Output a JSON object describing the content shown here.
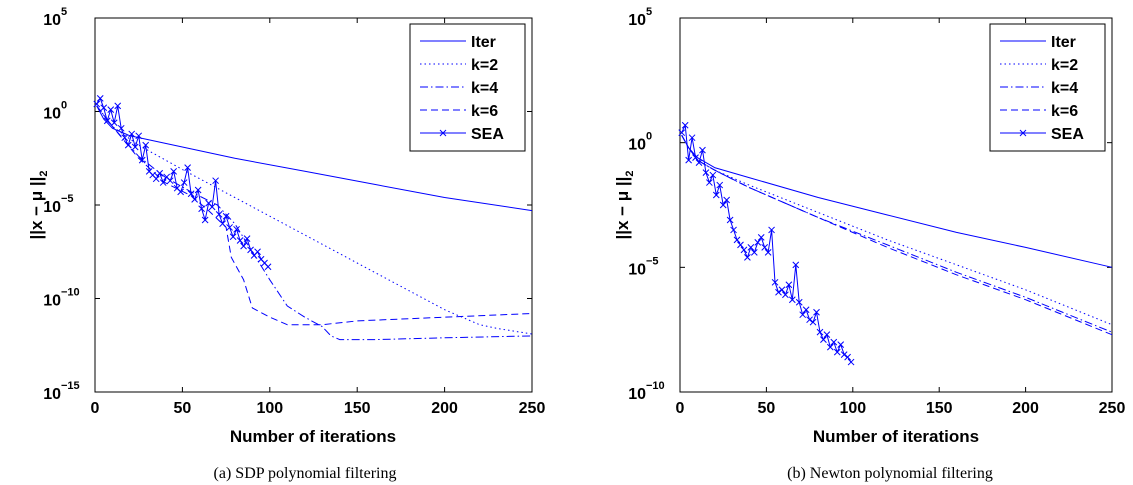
{
  "chart_data": [
    {
      "type": "line",
      "caption": "(a) SDP polynomial filtering",
      "xlabel": "Number of iterations",
      "ylabel": "||x − μ ||",
      "ylabel_sub": "2",
      "xlim": [
        0,
        250
      ],
      "ylim_log10": [
        -15,
        5
      ],
      "yscale": "log",
      "xticks": [
        0,
        50,
        100,
        150,
        200,
        250
      ],
      "yticks": [
        {
          "base": "10",
          "exp": "5",
          "value": 5
        },
        {
          "base": "10",
          "exp": "0",
          "value": 0
        },
        {
          "base": "10",
          "exp": "−5",
          "value": -5
        },
        {
          "base": "10",
          "exp": "−10",
          "value": -10
        },
        {
          "base": "10",
          "exp": "−15",
          "value": -15
        }
      ],
      "legend_position": "top-right",
      "series": [
        {
          "name": "Iter",
          "dash": "solid",
          "marker": "",
          "color": "#0000ff",
          "x": [
            1,
            5,
            10,
            20,
            40,
            80,
            120,
            160,
            200,
            250
          ],
          "log10_y": [
            0.3,
            -0.4,
            -0.9,
            -1.3,
            -1.7,
            -2.5,
            -3.2,
            -3.9,
            -4.6,
            -5.3
          ]
        },
        {
          "name": "k=2",
          "dash": "dotted",
          "marker": "",
          "color": "#0000ff",
          "x": [
            1,
            10,
            25,
            50,
            100,
            150,
            200,
            220,
            230,
            250
          ],
          "log10_y": [
            0.3,
            -0.8,
            -1.8,
            -3.1,
            -5.6,
            -8.1,
            -10.6,
            -11.4,
            -11.6,
            -11.9
          ]
        },
        {
          "name": "k=4",
          "dash": "dashdot",
          "marker": "",
          "color": "#0000ff",
          "x": [
            1,
            10,
            25,
            40,
            55,
            70,
            80,
            90,
            100,
            110,
            120,
            130,
            135,
            140,
            160,
            200,
            250
          ],
          "log10_y": [
            0.3,
            -0.8,
            -2.4,
            -3.5,
            -4.3,
            -5.0,
            -6.0,
            -7.5,
            -9.0,
            -10.4,
            -11.0,
            -11.5,
            -12.0,
            -12.2,
            -12.2,
            -12.1,
            -12.0
          ]
        },
        {
          "name": "k=6",
          "dash": "dashed",
          "marker": "",
          "color": "#0000ff",
          "x": [
            1,
            10,
            25,
            40,
            55,
            65,
            75,
            78,
            85,
            90,
            100,
            105,
            110,
            130,
            150,
            200,
            250
          ],
          "log10_y": [
            0.3,
            -0.8,
            -2.5,
            -3.8,
            -4.5,
            -5.3,
            -6.2,
            -7.8,
            -9.0,
            -10.5,
            -11.0,
            -11.2,
            -11.4,
            -11.4,
            -11.2,
            -11.0,
            -10.8
          ]
        },
        {
          "name": "SEA",
          "dash": "solid",
          "marker": "x",
          "color": "#0000ff",
          "x": [
            1,
            3,
            5,
            7,
            9,
            11,
            13,
            15,
            17,
            19,
            21,
            23,
            25,
            27,
            29,
            31,
            33,
            35,
            37,
            39,
            41,
            43,
            45,
            47,
            49,
            51,
            53,
            55,
            57,
            59,
            61,
            63,
            65,
            67,
            69,
            71,
            73,
            75,
            77,
            79,
            81,
            83,
            85,
            87,
            89,
            91,
            93,
            95,
            97,
            99
          ],
          "log10_y": [
            0.4,
            0.7,
            0.2,
            -0.5,
            0.1,
            -0.6,
            0.3,
            -0.9,
            -1.4,
            -1.8,
            -1.2,
            -1.9,
            -1.3,
            -2.6,
            -1.8,
            -3.2,
            -3.4,
            -3.6,
            -3.3,
            -3.8,
            -3.5,
            -3.7,
            -3.2,
            -4.1,
            -4.3,
            -3.8,
            -3.0,
            -4.4,
            -4.7,
            -4.2,
            -5.2,
            -5.8,
            -4.9,
            -5.1,
            -3.7,
            -5.5,
            -6.0,
            -5.6,
            -6.2,
            -6.7,
            -6.3,
            -6.9,
            -7.2,
            -6.8,
            -7.4,
            -7.7,
            -7.5,
            -7.9,
            -8.1,
            -8.3
          ]
        }
      ]
    },
    {
      "type": "line",
      "caption": "(b) Newton polynomial filtering",
      "xlabel": "Number of iterations",
      "ylabel": "||x − μ ||",
      "ylabel_sub": "2",
      "xlim": [
        0,
        250
      ],
      "ylim_log10": [
        -10,
        5
      ],
      "yscale": "log",
      "xticks": [
        0,
        50,
        100,
        150,
        200,
        250
      ],
      "yticks": [
        {
          "base": "10",
          "exp": "5",
          "value": 5
        },
        {
          "base": "10",
          "exp": "0",
          "value": 0
        },
        {
          "base": "10",
          "exp": "−5",
          "value": -5
        },
        {
          "base": "10",
          "exp": "−10",
          "value": -10
        }
      ],
      "legend_position": "top-right",
      "series": [
        {
          "name": "Iter",
          "dash": "solid",
          "marker": "",
          "color": "#0000ff",
          "x": [
            1,
            5,
            10,
            20,
            40,
            80,
            120,
            160,
            200,
            250
          ],
          "log10_y": [
            0.3,
            -0.2,
            -0.6,
            -1.0,
            -1.4,
            -2.2,
            -2.9,
            -3.6,
            -4.2,
            -5.0
          ]
        },
        {
          "name": "k=2",
          "dash": "dotted",
          "marker": "",
          "color": "#0000ff",
          "x": [
            1,
            5,
            10,
            20,
            40,
            80,
            120,
            160,
            200,
            250
          ],
          "log10_y": [
            0.3,
            -0.2,
            -0.7,
            -1.1,
            -1.7,
            -2.8,
            -3.9,
            -4.9,
            -5.9,
            -7.3
          ]
        },
        {
          "name": "k=4",
          "dash": "dashdot",
          "marker": "",
          "color": "#0000ff",
          "x": [
            1,
            5,
            10,
            20,
            40,
            80,
            120,
            160,
            200,
            250
          ],
          "log10_y": [
            0.3,
            -0.2,
            -0.7,
            -1.1,
            -1.8,
            -3.0,
            -4.1,
            -5.2,
            -6.2,
            -7.6
          ]
        },
        {
          "name": "k=6",
          "dash": "dashed",
          "marker": "",
          "color": "#0000ff",
          "x": [
            1,
            5,
            10,
            20,
            40,
            80,
            120,
            160,
            200,
            250
          ],
          "log10_y": [
            0.3,
            -0.2,
            -0.7,
            -1.1,
            -1.8,
            -3.0,
            -4.2,
            -5.3,
            -6.3,
            -7.7
          ]
        },
        {
          "name": "SEA",
          "dash": "solid",
          "marker": "x",
          "color": "#0000ff",
          "x": [
            1,
            3,
            5,
            7,
            9,
            11,
            13,
            15,
            17,
            19,
            21,
            23,
            25,
            27,
            29,
            31,
            33,
            35,
            37,
            39,
            41,
            43,
            45,
            47,
            49,
            51,
            53,
            55,
            57,
            59,
            61,
            63,
            65,
            67,
            69,
            71,
            73,
            75,
            77,
            79,
            81,
            83,
            85,
            87,
            89,
            91,
            93,
            95,
            97,
            99
          ],
          "log10_y": [
            0.4,
            0.7,
            -0.7,
            0.2,
            -0.6,
            -0.8,
            -0.3,
            -1.2,
            -1.6,
            -1.3,
            -2.1,
            -1.7,
            -2.5,
            -2.3,
            -3.1,
            -3.5,
            -3.9,
            -4.1,
            -4.3,
            -4.6,
            -4.2,
            -4.4,
            -4.0,
            -3.8,
            -4.2,
            -4.4,
            -3.5,
            -5.6,
            -6.0,
            -5.9,
            -6.1,
            -5.7,
            -6.3,
            -4.9,
            -6.4,
            -6.9,
            -6.7,
            -7.1,
            -7.2,
            -6.8,
            -7.6,
            -7.9,
            -7.7,
            -8.2,
            -8.0,
            -8.4,
            -8.1,
            -8.5,
            -8.6,
            -8.8
          ]
        }
      ]
    }
  ]
}
